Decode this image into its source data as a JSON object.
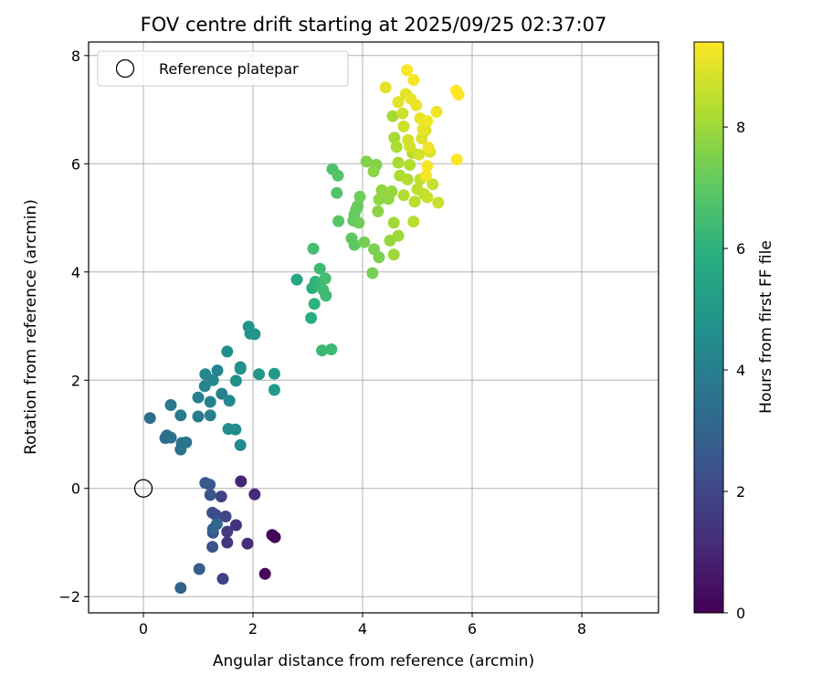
{
  "chart_data": {
    "type": "scatter",
    "title": "FOV centre drift starting at 2025/09/25 02:37:07",
    "xlabel": "Angular distance from reference (arcmin)",
    "ylabel": "Rotation from reference (arcmin)",
    "xlim": [
      -1.0,
      9.4
    ],
    "ylim": [
      -2.3,
      8.25
    ],
    "xticks": [
      0,
      2,
      4,
      6,
      8
    ],
    "yticks": [
      -2,
      0,
      2,
      4,
      6,
      8
    ],
    "xtick_labels": [
      "0",
      "2",
      "4",
      "6",
      "8"
    ],
    "ytick_labels": [
      "−2",
      "0",
      "2",
      "4",
      "6",
      "8"
    ],
    "grid": true,
    "legend": {
      "location": "upper-left",
      "entries": [
        "Reference platepar"
      ]
    },
    "reference_point": {
      "x": 0,
      "y": 0,
      "label": "Reference platepar"
    },
    "colorbar": {
      "label": "Hours from first FF file",
      "range": [
        0,
        9.4
      ],
      "ticks": [
        0,
        2,
        4,
        6,
        8
      ],
      "tick_labels": [
        "0",
        "2",
        "4",
        "6",
        "8"
      ],
      "colormap": "viridis"
    },
    "points": [
      [
        2.35,
        -0.86,
        0.1
      ],
      [
        2.4,
        -0.9,
        0.1
      ],
      [
        2.22,
        -1.58,
        0.2
      ],
      [
        1.78,
        0.13,
        1.0
      ],
      [
        2.03,
        -0.11,
        1.1
      ],
      [
        1.9,
        -1.02,
        1.2
      ],
      [
        1.69,
        -0.68,
        1.3
      ],
      [
        1.53,
        -1.0,
        1.5
      ],
      [
        1.53,
        -0.8,
        1.6
      ],
      [
        1.45,
        -1.67,
        1.8
      ],
      [
        1.42,
        -0.15,
        1.9
      ],
      [
        1.5,
        -0.52,
        2.0
      ],
      [
        1.32,
        -0.49,
        2.1
      ],
      [
        1.26,
        -0.45,
        2.2
      ],
      [
        1.27,
        -0.82,
        2.3
      ],
      [
        1.26,
        -1.08,
        2.4
      ],
      [
        1.22,
        -0.12,
        2.5
      ],
      [
        1.21,
        0.07,
        2.6
      ],
      [
        1.13,
        0.1,
        2.7
      ],
      [
        1.02,
        -1.49,
        2.8
      ],
      [
        0.68,
        -1.84,
        2.9
      ],
      [
        1.27,
        -0.75,
        3.0
      ],
      [
        1.34,
        -0.66,
        3.1
      ],
      [
        0.12,
        1.3,
        3.3
      ],
      [
        0.4,
        0.93,
        3.4
      ],
      [
        0.43,
        0.98,
        3.4
      ],
      [
        0.5,
        0.94,
        3.5
      ],
      [
        0.68,
        0.72,
        3.5
      ],
      [
        0.7,
        0.84,
        3.6
      ],
      [
        0.78,
        0.85,
        3.6
      ],
      [
        0.5,
        1.54,
        3.7
      ],
      [
        0.68,
        1.35,
        3.8
      ],
      [
        1.0,
        1.33,
        3.9
      ],
      [
        1.0,
        1.68,
        4.0
      ],
      [
        1.22,
        1.35,
        4.0
      ],
      [
        1.22,
        1.6,
        4.1
      ],
      [
        1.43,
        1.75,
        4.1
      ],
      [
        1.12,
        1.89,
        4.2
      ],
      [
        1.27,
        2.0,
        4.2
      ],
      [
        1.35,
        2.18,
        4.3
      ],
      [
        1.13,
        2.11,
        4.3
      ],
      [
        1.57,
        1.62,
        4.4
      ],
      [
        1.68,
        1.09,
        4.4
      ],
      [
        1.55,
        1.1,
        4.5
      ],
      [
        1.77,
        0.8,
        4.5
      ],
      [
        1.53,
        2.53,
        4.6
      ],
      [
        1.69,
        1.99,
        4.7
      ],
      [
        1.77,
        2.21,
        4.7
      ],
      [
        1.77,
        2.24,
        4.8
      ],
      [
        1.92,
        2.99,
        4.8
      ],
      [
        1.95,
        2.86,
        4.9
      ],
      [
        2.03,
        2.85,
        4.9
      ],
      [
        2.11,
        2.11,
        5.0
      ],
      [
        2.39,
        2.12,
        5.0
      ],
      [
        2.39,
        1.82,
        5.1
      ],
      [
        2.8,
        3.86,
        5.6
      ],
      [
        3.06,
        3.15,
        5.8
      ],
      [
        3.08,
        3.7,
        5.9
      ],
      [
        3.12,
        3.41,
        6.0
      ],
      [
        3.14,
        3.82,
        6.1
      ],
      [
        3.21,
        3.74,
        6.2
      ],
      [
        3.26,
        2.55,
        6.3
      ],
      [
        3.43,
        2.57,
        6.3
      ],
      [
        3.22,
        4.06,
        6.4
      ],
      [
        3.28,
        3.67,
        6.4
      ],
      [
        3.33,
        3.56,
        6.4
      ],
      [
        3.32,
        3.88,
        6.5
      ],
      [
        3.1,
        4.43,
        6.5
      ],
      [
        3.45,
        5.9,
        6.7
      ],
      [
        3.55,
        5.78,
        6.8
      ],
      [
        3.53,
        5.46,
        6.8
      ],
      [
        3.56,
        4.94,
        6.9
      ],
      [
        3.8,
        4.62,
        7.0
      ],
      [
        3.85,
        4.5,
        7.0
      ],
      [
        3.83,
        4.95,
        7.1
      ],
      [
        3.85,
        5.06,
        7.1
      ],
      [
        3.88,
        5.15,
        7.2
      ],
      [
        3.91,
        5.22,
        7.2
      ],
      [
        3.95,
        5.39,
        7.3
      ],
      [
        3.93,
        4.91,
        7.3
      ],
      [
        4.03,
        4.55,
        7.4
      ],
      [
        4.18,
        3.98,
        7.4
      ],
      [
        4.21,
        4.42,
        7.5
      ],
      [
        4.3,
        4.27,
        7.5
      ],
      [
        4.07,
        6.04,
        7.6
      ],
      [
        4.25,
        5.98,
        7.6
      ],
      [
        4.2,
        5.86,
        7.7
      ],
      [
        4.28,
        5.12,
        7.7
      ],
      [
        4.3,
        5.34,
        7.8
      ],
      [
        4.35,
        5.51,
        7.8
      ],
      [
        4.47,
        5.35,
        7.8
      ],
      [
        4.53,
        5.49,
        7.9
      ],
      [
        4.5,
        4.58,
        7.9
      ],
      [
        4.57,
        4.32,
        8.0
      ],
      [
        4.57,
        4.91,
        8.0
      ],
      [
        4.65,
        4.67,
        8.0
      ],
      [
        4.55,
        6.88,
        8.1
      ],
      [
        4.58,
        6.48,
        8.1
      ],
      [
        4.62,
        6.31,
        8.2
      ],
      [
        4.65,
        6.02,
        8.2
      ],
      [
        4.68,
        5.78,
        8.2
      ],
      [
        4.75,
        5.42,
        8.3
      ],
      [
        4.82,
        5.71,
        8.3
      ],
      [
        4.86,
        5.98,
        8.3
      ],
      [
        4.91,
        6.2,
        8.4
      ],
      [
        4.93,
        4.93,
        8.4
      ],
      [
        4.95,
        5.3,
        8.4
      ],
      [
        5.0,
        5.53,
        8.5
      ],
      [
        5.05,
        5.71,
        8.5
      ],
      [
        5.12,
        5.44,
        8.5
      ],
      [
        5.18,
        5.38,
        8.6
      ],
      [
        5.28,
        5.62,
        8.6
      ],
      [
        5.38,
        5.28,
        8.6
      ],
      [
        4.73,
        6.93,
        8.7
      ],
      [
        4.75,
        6.69,
        8.7
      ],
      [
        4.83,
        6.44,
        8.8
      ],
      [
        4.86,
        6.32,
        8.8
      ],
      [
        5.03,
        6.17,
        8.8
      ],
      [
        5.08,
        6.47,
        8.9
      ],
      [
        5.15,
        6.62,
        8.9
      ],
      [
        5.23,
        6.22,
        8.9
      ],
      [
        4.42,
        7.41,
        9.0
      ],
      [
        4.65,
        7.14,
        9.0
      ],
      [
        4.79,
        7.29,
        9.0
      ],
      [
        4.88,
        7.2,
        9.1
      ],
      [
        4.98,
        7.08,
        9.1
      ],
      [
        5.05,
        6.84,
        9.1
      ],
      [
        5.1,
        6.64,
        9.1
      ],
      [
        5.18,
        6.79,
        9.2
      ],
      [
        5.35,
        6.96,
        9.2
      ],
      [
        5.2,
        6.3,
        9.2
      ],
      [
        5.18,
        5.96,
        9.3
      ],
      [
        5.16,
        5.78,
        9.3
      ],
      [
        4.81,
        7.73,
        9.3
      ],
      [
        4.93,
        7.55,
        9.3
      ],
      [
        5.71,
        7.35,
        9.4
      ],
      [
        5.75,
        7.28,
        9.4
      ],
      [
        5.72,
        6.08,
        9.4
      ]
    ]
  }
}
